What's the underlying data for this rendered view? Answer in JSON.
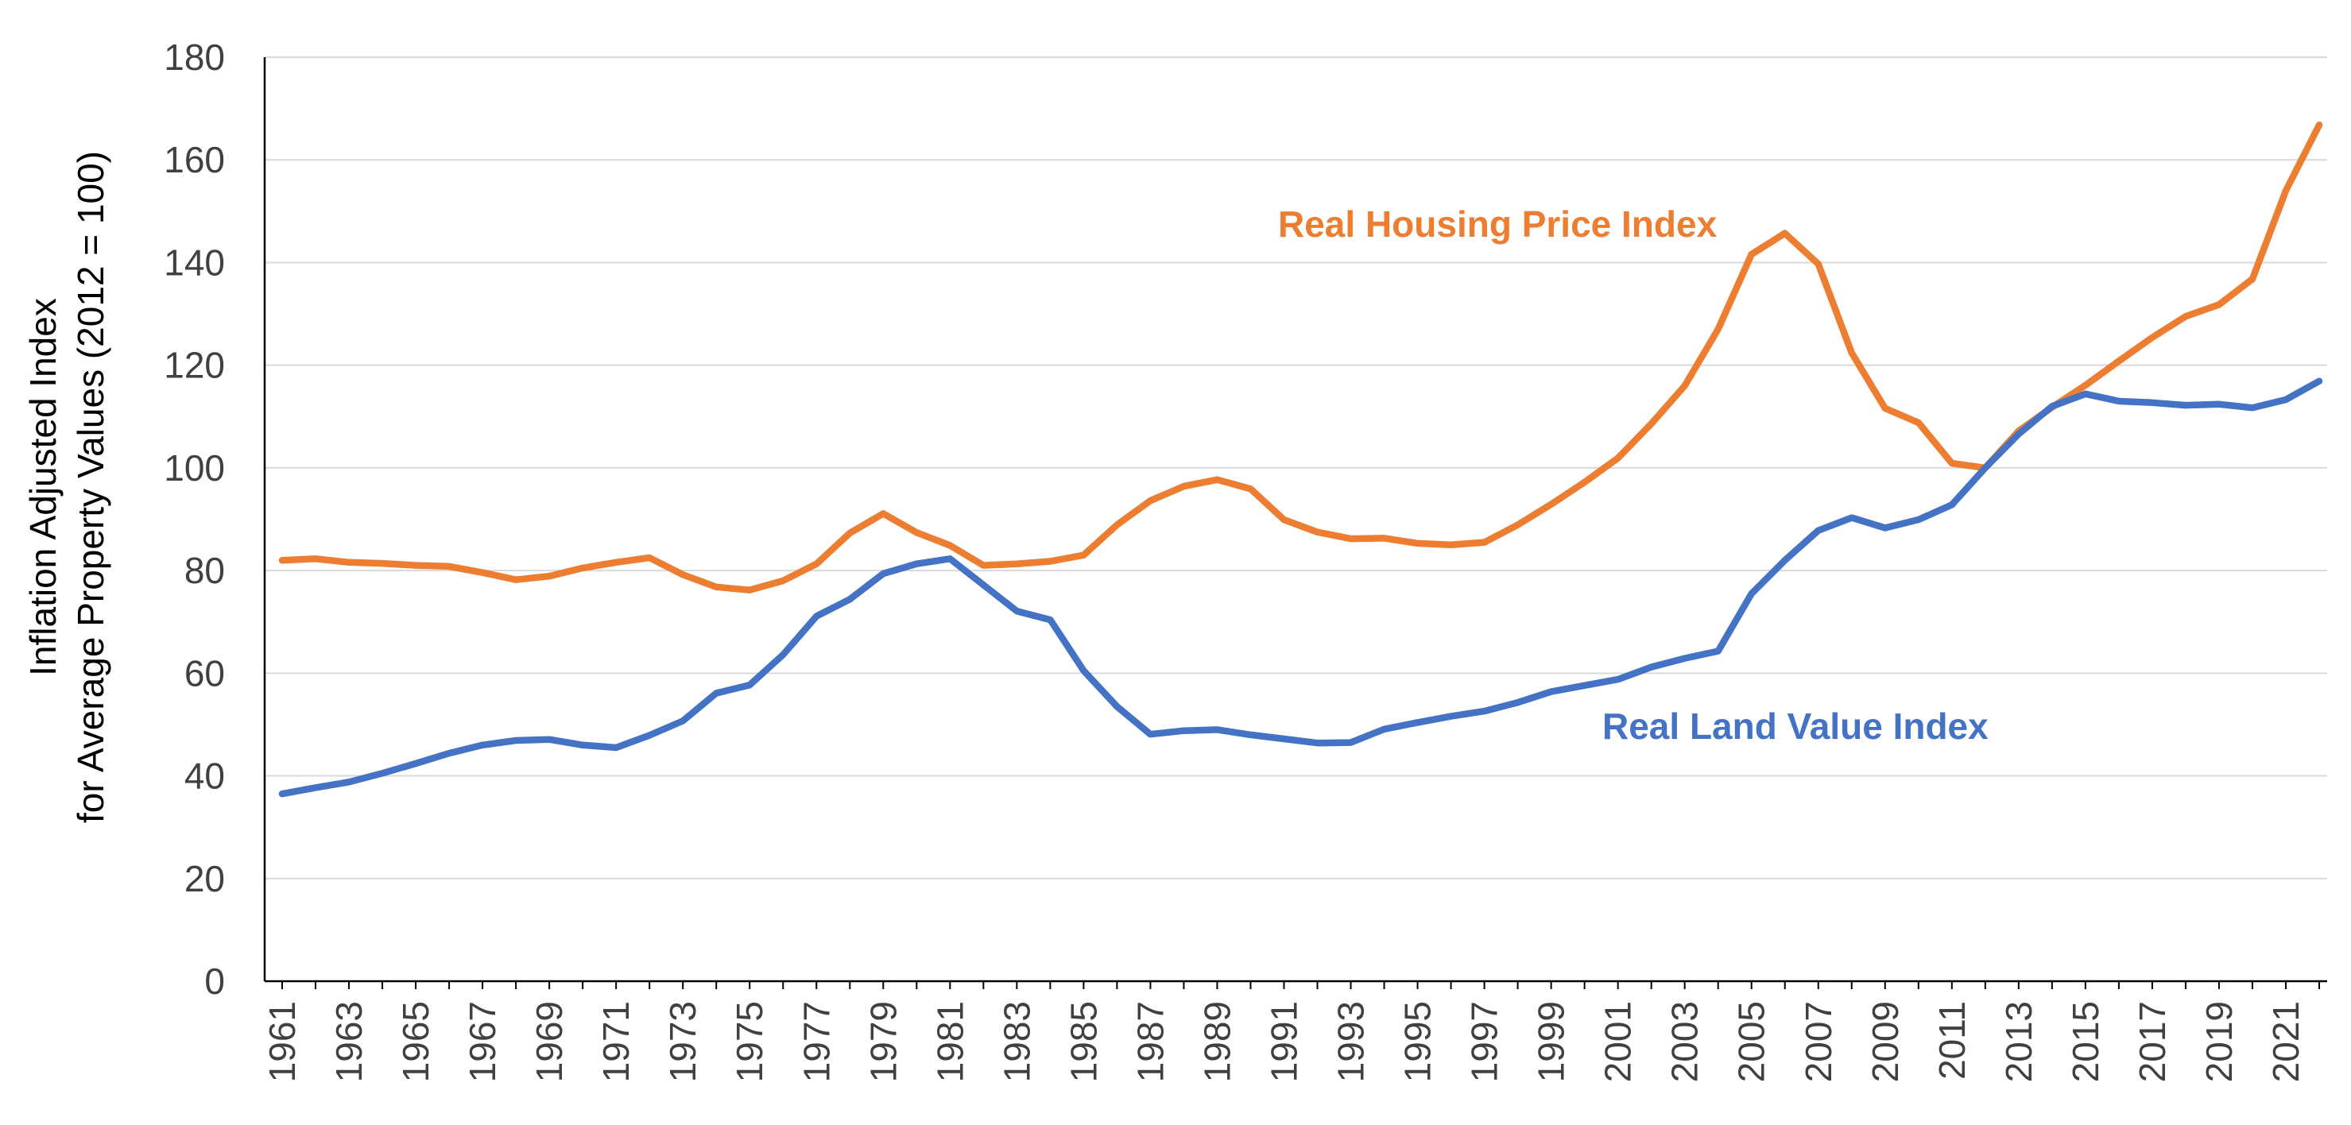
{
  "chart_data": {
    "type": "line",
    "title": "",
    "xlabel": "",
    "ylabel_lines": [
      "Inflation Adjusted Index",
      "for Average Property Values (2012 = 100)"
    ],
    "ylim": [
      0,
      180
    ],
    "y_ticks": [
      0,
      20,
      40,
      60,
      80,
      100,
      120,
      140,
      160,
      180
    ],
    "grid": true,
    "x": [
      1961,
      1962,
      1963,
      1964,
      1965,
      1966,
      1967,
      1968,
      1969,
      1970,
      1971,
      1972,
      1973,
      1974,
      1975,
      1976,
      1977,
      1978,
      1979,
      1980,
      1981,
      1982,
      1983,
      1984,
      1985,
      1986,
      1987,
      1988,
      1989,
      1990,
      1991,
      1992,
      1993,
      1994,
      1995,
      1996,
      1997,
      1998,
      1999,
      2000,
      2001,
      2002,
      2003,
      2004,
      2005,
      2006,
      2007,
      2008,
      2009,
      2010,
      2011,
      2012,
      2013,
      2014,
      2015,
      2016,
      2017,
      2018,
      2019,
      2020,
      2021,
      2022
    ],
    "x_tick_labels": [
      "1961",
      "1963",
      "1965",
      "1967",
      "1969",
      "1971",
      "1973",
      "1975",
      "1977",
      "1979",
      "1981",
      "1983",
      "1985",
      "1987",
      "1989",
      "1991",
      "1993",
      "1995",
      "1997",
      "1999",
      "2001",
      "2003",
      "2005",
      "2007",
      "2009",
      "2011",
      "2013",
      "2015",
      "2017",
      "2019",
      "2021"
    ],
    "series": [
      {
        "name": "Real Housing Price Index",
        "color": "#ED7D31",
        "values": [
          82,
          82.3,
          81.6,
          81.4,
          81,
          80.8,
          79.6,
          78.2,
          78.9,
          80.5,
          81.6,
          82.5,
          79.2,
          76.8,
          76.2,
          78,
          81.3,
          87.3,
          91.1,
          87.4,
          84.9,
          81,
          81.3,
          81.8,
          83,
          88.9,
          93.6,
          96.4,
          97.7,
          95.9,
          89.9,
          87.5,
          86.2,
          86.3,
          85.3,
          85,
          85.5,
          88.9,
          92.9,
          97.2,
          101.9,
          108.6,
          116,
          127,
          141.6,
          145.7,
          139.7,
          122.4,
          111.6,
          108.8,
          100.9,
          100,
          107.2,
          111.8,
          116.1,
          120.8,
          125.4,
          129.5,
          131.8,
          136.8,
          154,
          166.8
        ]
      },
      {
        "name": "Real Land Value Index",
        "color": "#4472C4",
        "values": [
          36.5,
          37.7,
          38.8,
          40.5,
          42.4,
          44.4,
          46,
          46.9,
          47.1,
          46,
          45.5,
          47.9,
          50.7,
          56.1,
          57.7,
          63.6,
          71.1,
          74.4,
          79.4,
          81.3,
          82.3,
          77.2,
          72.1,
          70.4,
          60.5,
          53.5,
          48.1,
          48.8,
          49,
          48,
          47.2,
          46.4,
          46.5,
          49.1,
          50.4,
          51.6,
          52.6,
          54.3,
          56.4,
          57.6,
          58.8,
          61.2,
          62.9,
          64.3,
          75.5,
          82,
          87.8,
          90.3,
          88.3,
          89.9,
          92.8,
          100,
          106.6,
          112,
          114.4,
          113,
          112.7,
          112.2,
          112.4,
          111.7,
          113.3,
          116.9
        ]
      }
    ],
    "annotations": [
      {
        "text": "Real Housing Price Index",
        "series": 0
      },
      {
        "text": "Real Land Value Index",
        "series": 1
      }
    ]
  }
}
